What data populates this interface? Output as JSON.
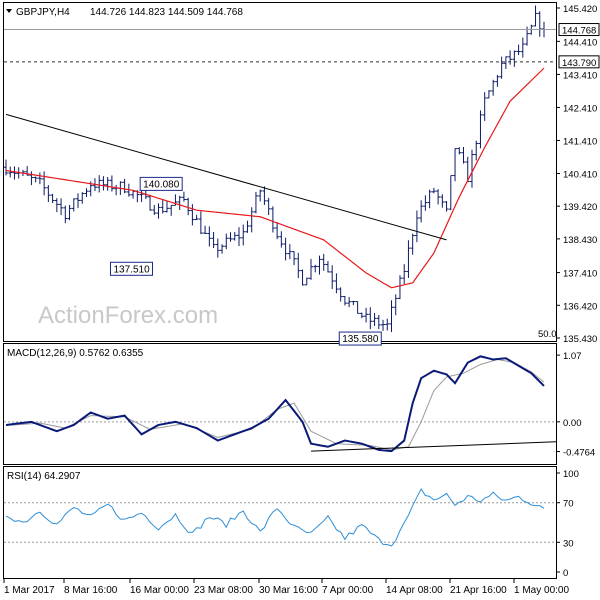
{
  "header": {
    "symbol": "GBPJPY,H4",
    "ohlc": "144.726 144.823 144.509 144.768"
  },
  "watermark": "ActionForex.com",
  "colors": {
    "candle": "#0c1a66",
    "ma": "#e8181a",
    "macd": "#0a1a78",
    "signal": "#9a9a9a",
    "rsi": "#2f8fd6",
    "trend": "#000000",
    "frame": "#000000",
    "ref_line": "#9a9a9a"
  },
  "chart_data": [
    {
      "type": "candlestick",
      "title": "GBPJPY,H4",
      "y_ticks": [
        "145.420",
        "144.410",
        "143.410",
        "142.410",
        "141.410",
        "140.410",
        "139.420",
        "138.430",
        "137.410",
        "136.420",
        "135.430"
      ],
      "current_price": "144.768",
      "dashed_level": "143.790",
      "ma_label": "50.0",
      "annotations": [
        "140.080",
        "137.510",
        "135.580"
      ],
      "ylim": [
        135.43,
        145.42
      ],
      "grid": false,
      "ohlc_anchor_path": [
        [
          0,
          140.6
        ],
        [
          8,
          140.1
        ],
        [
          14,
          139.2
        ],
        [
          20,
          140.1
        ],
        [
          28,
          140.0
        ],
        [
          36,
          139.3
        ],
        [
          42,
          139.6
        ],
        [
          49,
          138.1
        ],
        [
          56,
          138.6
        ],
        [
          60,
          139.9
        ],
        [
          64,
          138.6
        ],
        [
          70,
          137.2
        ],
        [
          74,
          137.9
        ],
        [
          80,
          136.6
        ],
        [
          85,
          136.0
        ],
        [
          90,
          135.8
        ],
        [
          94,
          137.5
        ],
        [
          97,
          139.2
        ],
        [
          101,
          139.9
        ],
        [
          104,
          139.2
        ],
        [
          106,
          141.2
        ],
        [
          109,
          140.3
        ],
        [
          113,
          142.6
        ],
        [
          117,
          143.7
        ],
        [
          122,
          144.2
        ],
        [
          125,
          145.1
        ],
        [
          127,
          144.768
        ]
      ],
      "ma50": [
        [
          0,
          140.5
        ],
        [
          30,
          139.9
        ],
        [
          45,
          139.3
        ],
        [
          60,
          139.1
        ],
        [
          75,
          138.4
        ],
        [
          85,
          137.4
        ],
        [
          91,
          136.95
        ],
        [
          96,
          137.1
        ],
        [
          101,
          138.0
        ],
        [
          107,
          139.7
        ],
        [
          113,
          141.2
        ],
        [
          119,
          142.6
        ],
        [
          127,
          143.6
        ]
      ],
      "trendline": [
        [
          0,
          142.2
        ],
        [
          104,
          138.4
        ]
      ]
    },
    {
      "type": "line",
      "title": "MACD(12,26,9) 0.5762 0.6355",
      "y_ticks": [
        "1.07",
        "0.00",
        "-0.4764"
      ],
      "ylim": [
        -0.58,
        1.12
      ],
      "series": [
        {
          "name": "MACD",
          "points": [
            [
              0,
              -0.05
            ],
            [
              6,
              0.0
            ],
            [
              12,
              -0.15
            ],
            [
              16,
              -0.05
            ],
            [
              20,
              0.15
            ],
            [
              24,
              0.05
            ],
            [
              28,
              0.1
            ],
            [
              32,
              -0.2
            ],
            [
              36,
              -0.05
            ],
            [
              40,
              0.0
            ],
            [
              45,
              -0.1
            ],
            [
              50,
              -0.3
            ],
            [
              54,
              -0.2
            ],
            [
              58,
              -0.1
            ],
            [
              62,
              0.05
            ],
            [
              66,
              0.35
            ],
            [
              70,
              0.0
            ],
            [
              72,
              -0.35
            ],
            [
              76,
              -0.4
            ],
            [
              80,
              -0.3
            ],
            [
              84,
              -0.35
            ],
            [
              88,
              -0.45
            ],
            [
              91,
              -0.47
            ],
            [
              94,
              -0.3
            ],
            [
              96,
              0.3
            ],
            [
              98,
              0.7
            ],
            [
              101,
              0.82
            ],
            [
              104,
              0.76
            ],
            [
              106,
              0.62
            ],
            [
              109,
              0.95
            ],
            [
              112,
              1.05
            ],
            [
              115,
              1.0
            ],
            [
              118,
              1.02
            ],
            [
              121,
              0.9
            ],
            [
              124,
              0.78
            ],
            [
              127,
              0.5762
            ]
          ]
        },
        {
          "name": "Signal",
          "points": [
            [
              0,
              -0.06
            ],
            [
              8,
              -0.02
            ],
            [
              14,
              -0.1
            ],
            [
              20,
              0.1
            ],
            [
              28,
              0.08
            ],
            [
              34,
              -0.12
            ],
            [
              42,
              -0.03
            ],
            [
              50,
              -0.25
            ],
            [
              58,
              -0.12
            ],
            [
              64,
              0.2
            ],
            [
              68,
              0.3
            ],
            [
              72,
              -0.15
            ],
            [
              78,
              -0.35
            ],
            [
              86,
              -0.38
            ],
            [
              91,
              -0.45
            ],
            [
              95,
              -0.4
            ],
            [
              98,
              0.0
            ],
            [
              101,
              0.5
            ],
            [
              104,
              0.72
            ],
            [
              108,
              0.78
            ],
            [
              112,
              0.92
            ],
            [
              116,
              1.0
            ],
            [
              120,
              0.95
            ],
            [
              124,
              0.8
            ],
            [
              127,
              0.6355
            ]
          ]
        }
      ],
      "trendline": [
        [
          72,
          -0.47
        ],
        [
          127,
          -0.32
        ]
      ]
    },
    {
      "type": "line",
      "title": "RSI(14) 64.2907",
      "y_ticks": [
        "100",
        "70",
        "30",
        "0"
      ],
      "ylim": [
        0,
        100
      ],
      "series": [
        {
          "name": "RSI(14)",
          "points": [
            [
              0,
              58
            ],
            [
              4,
              50
            ],
            [
              8,
              62
            ],
            [
              12,
              48
            ],
            [
              16,
              65
            ],
            [
              20,
              55
            ],
            [
              24,
              68
            ],
            [
              28,
              52
            ],
            [
              32,
              60
            ],
            [
              36,
              45
            ],
            [
              40,
              58
            ],
            [
              44,
              38
            ],
            [
              48,
              56
            ],
            [
              52,
              48
            ],
            [
              56,
              62
            ],
            [
              60,
              40
            ],
            [
              64,
              65
            ],
            [
              68,
              45
            ],
            [
              72,
              38
            ],
            [
              76,
              54
            ],
            [
              80,
              34
            ],
            [
              84,
              47
            ],
            [
              88,
              32
            ],
            [
              91,
              28
            ],
            [
              94,
              48
            ],
            [
              96,
              65
            ],
            [
              98,
              82
            ],
            [
              101,
              73
            ],
            [
              104,
              78
            ],
            [
              106,
              68
            ],
            [
              109,
              76
            ],
            [
              112,
              72
            ],
            [
              115,
              78
            ],
            [
              118,
              72
            ],
            [
              121,
              76
            ],
            [
              124,
              70
            ],
            [
              127,
              64.29
            ]
          ]
        }
      ]
    }
  ],
  "x_axis_labels": [
    "1 Mar 2017",
    "8 Mar 16:00",
    "16 Mar 00:00",
    "23 Mar 08:00",
    "30 Mar 16:00",
    "7 Apr 00:00",
    "14 Apr 08:00",
    "21 Apr 16:00",
    "1 May 00:00"
  ]
}
